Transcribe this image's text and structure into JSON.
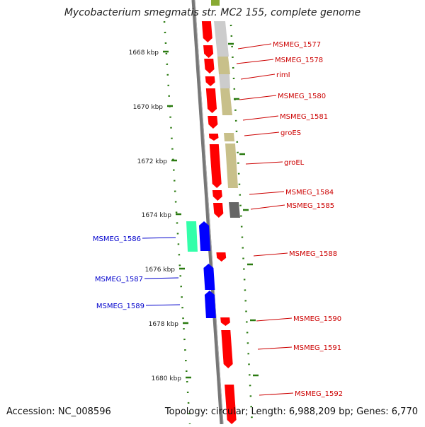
{
  "title": "Mycobacterium smegmatis str. MC2 155, complete genome",
  "footer": {
    "accession": "Accession: NC_008596",
    "summary": "Topology: circular; Length: 6,988,209 bp; Genes: 6,770"
  },
  "colors": {
    "forward_gene": "#ff0000",
    "reverse_gene": "#0000ff",
    "reverse_highlight": "#33ffaa",
    "forward_label": "#cc0000",
    "reverse_label": "#0000cc",
    "tick": "#2a7a10",
    "backbone": "#777777",
    "khaki_feature": "#c8c08a",
    "light_feature": "#cccccc",
    "dark_feature": "#666666"
  },
  "ruler": {
    "unit": "kbp",
    "labels": [
      "1668 kbp",
      "1670 kbp",
      "1672 kbp",
      "1674 kbp",
      "1676 kbp",
      "1678 kbp",
      "1680 kbp"
    ]
  },
  "forward_labels": [
    "MSMEG_1577",
    "MSMEG_1578",
    "rimI",
    "MSMEG_1580",
    "MSMEG_1581",
    "groES",
    "groEL",
    "MSMEG_1584",
    "MSMEG_1585",
    "MSMEG_1588",
    "MSMEG_1590",
    "MSMEG_1591",
    "MSMEG_1592"
  ],
  "reverse_labels": [
    "MSMEG_1586",
    "MSMEG_1587",
    "MSMEG_1589"
  ]
}
